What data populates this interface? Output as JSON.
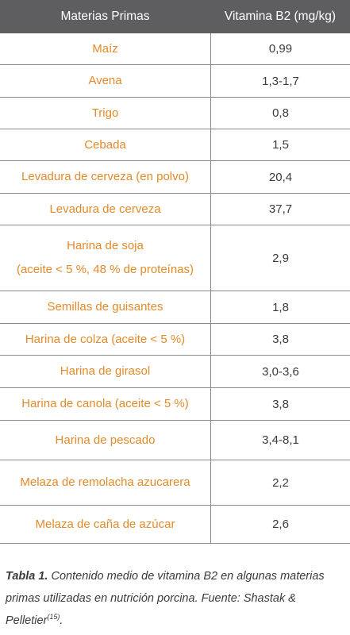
{
  "table": {
    "headers": [
      "Materias Primas",
      "Vitamina B2 (mg/kg)"
    ],
    "rows": [
      {
        "material": [
          "Maíz"
        ],
        "value": "0,99"
      },
      {
        "material": [
          "Avena"
        ],
        "value": "1,3-1,7"
      },
      {
        "material": [
          "Trigo"
        ],
        "value": "0,8"
      },
      {
        "material": [
          "Cebada"
        ],
        "value": "1,5"
      },
      {
        "material": [
          "Levadura de cerveza (en polvo)"
        ],
        "value": "20,4"
      },
      {
        "material": [
          "Levadura de cerveza"
        ],
        "value": "37,7"
      },
      {
        "material": [
          "Harina de soja",
          "(aceite < 5 %, 48 % de proteínas)"
        ],
        "value": "2,9"
      },
      {
        "material": [
          "Semillas de guisantes"
        ],
        "value": "1,8"
      },
      {
        "material": [
          "Harina de colza (aceite < 5 %)"
        ],
        "value": "3,8"
      },
      {
        "material": [
          "Harina de girasol"
        ],
        "value": "3,0-3,6"
      },
      {
        "material": [
          "Harina de canola (aceite < 5 %)"
        ],
        "value": "3,8"
      },
      {
        "material": [
          "Harina de pescado"
        ],
        "value": "3,4-8,1"
      },
      {
        "material": [
          "Melaza de remolacha azucarera"
        ],
        "value": "2,2"
      },
      {
        "material": [
          "Melaza de caña de azúcar"
        ],
        "value": "2,6"
      }
    ]
  },
  "caption": {
    "label": "Tabla 1.",
    "text": " Contenido medio de vitamina B2 en algunas materias primas utilizadas en nutrición porcina. Fuente: Shastak & Pelletier",
    "ref": "(15)",
    "end": "."
  },
  "colors": {
    "header_bg": "#5e5e60",
    "material_text": "#e38a2a",
    "value_text": "#3a3a3a",
    "rule": "#8a8a8a"
  }
}
